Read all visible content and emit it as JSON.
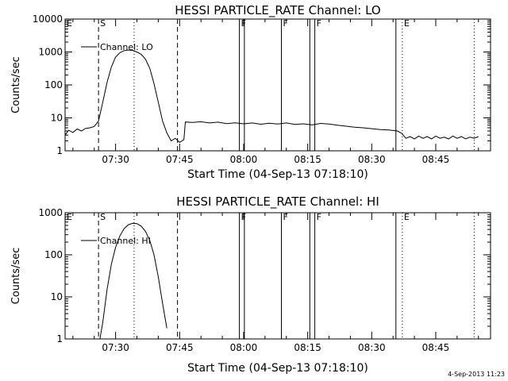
{
  "chart_data": [
    {
      "type": "line",
      "title": "HESSI PARTICLE_RATE Channel: LO",
      "xlabel": "Start Time (04-Sep-13 07:18:10)",
      "ylabel": "Counts/sec",
      "yscale": "log",
      "ylim": [
        1,
        10000
      ],
      "xlim": [
        "07:18:10",
        "08:57:50"
      ],
      "xtick_labels": [
        "07:30",
        "07:45",
        "08:00",
        "08:15",
        "08:30",
        "08:45"
      ],
      "ytick_labels": [
        "1",
        "10",
        "100",
        "1000",
        "10000"
      ],
      "legend": {
        "label": "Channel: LO",
        "position": "top-left"
      },
      "grid": false,
      "markers": [
        {
          "label": "E",
          "time": "07:18:10",
          "style": "none"
        },
        {
          "label": "S",
          "time": "07:26:00",
          "style": "dashed"
        },
        {
          "label": "",
          "time": "07:34:20",
          "style": "dotted"
        },
        {
          "label": "",
          "time": "07:44:30",
          "style": "dashed"
        },
        {
          "label": "F",
          "time": "07:59:00",
          "style": "solid"
        },
        {
          "label": "",
          "time": "08:00:10",
          "style": "solid"
        },
        {
          "label": "F",
          "time": "08:08:50",
          "style": "solid"
        },
        {
          "label": "",
          "time": "08:15:30",
          "style": "solid"
        },
        {
          "label": "F",
          "time": "08:16:40",
          "style": "solid"
        },
        {
          "label": "",
          "time": "08:35:40",
          "style": "solid"
        },
        {
          "label": "E",
          "time": "08:37:10",
          "style": "dotted"
        },
        {
          "label": "",
          "time": "08:54:00",
          "style": "dotted"
        }
      ],
      "series": [
        {
          "name": "Channel: LO",
          "points": [
            [
              "07:18:10",
              3
            ],
            [
              "07:19:00",
              4.2
            ],
            [
              "07:20:00",
              3.6
            ],
            [
              "07:21:00",
              4.6
            ],
            [
              "07:22:00",
              4.0
            ],
            [
              "07:23:00",
              4.8
            ],
            [
              "07:24:00",
              5.0
            ],
            [
              "07:25:00",
              5.5
            ],
            [
              "07:26:00",
              8
            ],
            [
              "07:27:00",
              30
            ],
            [
              "07:28:00",
              120
            ],
            [
              "07:29:00",
              350
            ],
            [
              "07:30:00",
              700
            ],
            [
              "07:31:00",
              950
            ],
            [
              "07:32:00",
              1100
            ],
            [
              "07:33:00",
              1150
            ],
            [
              "07:34:00",
              1120
            ],
            [
              "07:35:00",
              1000
            ],
            [
              "07:36:00",
              850
            ],
            [
              "07:37:00",
              600
            ],
            [
              "07:38:00",
              320
            ],
            [
              "07:39:00",
              110
            ],
            [
              "07:40:00",
              30
            ],
            [
              "07:41:00",
              8
            ],
            [
              "07:42:00",
              3.5
            ],
            [
              "07:43:00",
              2.0
            ],
            [
              "07:44:00",
              2.4
            ],
            [
              "07:45:00",
              1.8
            ],
            [
              "07:46:00",
              2.2
            ],
            [
              "07:46:20",
              7.5
            ],
            [
              "07:48:00",
              7.3
            ],
            [
              "07:50:00",
              7.6
            ],
            [
              "07:52:00",
              7.0
            ],
            [
              "07:54:00",
              7.4
            ],
            [
              "07:56:00",
              6.7
            ],
            [
              "07:58:00",
              7.1
            ],
            [
              "08:00:00",
              6.6
            ],
            [
              "08:02:00",
              7.0
            ],
            [
              "08:04:00",
              6.4
            ],
            [
              "08:06:00",
              6.9
            ],
            [
              "08:08:00",
              6.5
            ],
            [
              "08:10:00",
              7.0
            ],
            [
              "08:12:00",
              6.3
            ],
            [
              "08:14:00",
              6.6
            ],
            [
              "08:16:00",
              6.1
            ],
            [
              "08:18:00",
              6.8
            ],
            [
              "08:20:00",
              6.5
            ],
            [
              "08:22:00",
              6.0
            ],
            [
              "08:24:00",
              5.6
            ],
            [
              "08:26:00",
              5.2
            ],
            [
              "08:28:00",
              5.0
            ],
            [
              "08:30:00",
              4.7
            ],
            [
              "08:32:00",
              4.4
            ],
            [
              "08:34:00",
              4.3
            ],
            [
              "08:36:00",
              4.0
            ],
            [
              "08:37:00",
              3.4
            ],
            [
              "08:38:00",
              2.4
            ],
            [
              "08:39:00",
              2.7
            ],
            [
              "08:40:00",
              2.3
            ],
            [
              "08:41:00",
              2.8
            ],
            [
              "08:42:00",
              2.4
            ],
            [
              "08:43:00",
              2.7
            ],
            [
              "08:44:00",
              2.3
            ],
            [
              "08:45:00",
              2.8
            ],
            [
              "08:46:00",
              2.4
            ],
            [
              "08:47:00",
              2.6
            ],
            [
              "08:48:00",
              2.3
            ],
            [
              "08:49:00",
              2.8
            ],
            [
              "08:50:00",
              2.4
            ],
            [
              "08:51:00",
              2.7
            ],
            [
              "08:52:00",
              2.3
            ],
            [
              "08:53:00",
              2.6
            ],
            [
              "08:54:00",
              2.4
            ],
            [
              "08:55:00",
              2.7
            ]
          ]
        }
      ]
    },
    {
      "type": "line",
      "title": "HESSI PARTICLE_RATE Channel: HI",
      "xlabel": "Start Time (04-Sep-13 07:18:10)",
      "ylabel": "Counts/sec",
      "yscale": "log",
      "ylim": [
        1,
        1000
      ],
      "xlim": [
        "07:18:10",
        "08:57:50"
      ],
      "xtick_labels": [
        "07:30",
        "07:45",
        "08:00",
        "08:15",
        "08:30",
        "08:45"
      ],
      "ytick_labels": [
        "1",
        "10",
        "100",
        "1000"
      ],
      "legend": {
        "label": "Channel: HI",
        "position": "top-left"
      },
      "grid": false,
      "markers": [
        {
          "label": "E",
          "time": "07:18:10",
          "style": "none"
        },
        {
          "label": "S",
          "time": "07:26:00",
          "style": "dashed"
        },
        {
          "label": "",
          "time": "07:34:20",
          "style": "dotted"
        },
        {
          "label": "",
          "time": "07:44:30",
          "style": "dashed"
        },
        {
          "label": "F",
          "time": "07:59:00",
          "style": "solid"
        },
        {
          "label": "",
          "time": "08:00:10",
          "style": "solid"
        },
        {
          "label": "F",
          "time": "08:08:50",
          "style": "solid"
        },
        {
          "label": "",
          "time": "08:15:30",
          "style": "solid"
        },
        {
          "label": "F",
          "time": "08:16:40",
          "style": "solid"
        },
        {
          "label": "",
          "time": "08:35:40",
          "style": "solid"
        },
        {
          "label": "E",
          "time": "08:37:10",
          "style": "dotted"
        },
        {
          "label": "",
          "time": "08:54:00",
          "style": "dotted"
        }
      ],
      "series": [
        {
          "name": "Channel: HI",
          "points": [
            [
              "07:26:20",
              1.0
            ],
            [
              "07:27:00",
              2.5
            ],
            [
              "07:28:00",
              15
            ],
            [
              "07:29:00",
              60
            ],
            [
              "07:30:00",
              150
            ],
            [
              "07:31:00",
              280
            ],
            [
              "07:32:00",
              420
            ],
            [
              "07:33:00",
              520
            ],
            [
              "07:34:00",
              560
            ],
            [
              "07:35:00",
              550
            ],
            [
              "07:36:00",
              480
            ],
            [
              "07:37:00",
              360
            ],
            [
              "07:38:00",
              220
            ],
            [
              "07:39:00",
              100
            ],
            [
              "07:40:00",
              30
            ],
            [
              "07:41:00",
              7
            ],
            [
              "07:42:00",
              1.8
            ]
          ]
        }
      ]
    }
  ],
  "footer": {
    "timestamp": "4-Sep-2013 11:23"
  }
}
